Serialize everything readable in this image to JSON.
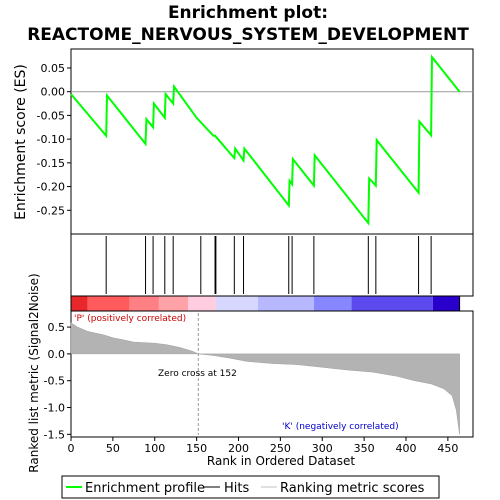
{
  "chart_data": {
    "type": "line",
    "title_line1": "Enrichment plot:",
    "title_line2": "REACTOME_NERVOUS_SYSTEM_DEVELOPMENT",
    "es_panel": {
      "ylabel": "Enrichment score (ES)",
      "ylim": [
        -0.3,
        0.09
      ],
      "yticks": [
        0.05,
        0.0,
        -0.05,
        -0.1,
        -0.15,
        -0.2,
        -0.25
      ],
      "ytick_labels": [
        "0.05",
        "0.00",
        "-0.05",
        "-0.10",
        "-0.15",
        "-0.20",
        "-0.25"
      ],
      "line_color": "#00ff00",
      "profile": [
        [
          0,
          -0.005
        ],
        [
          42,
          -0.093
        ],
        [
          43,
          -0.008
        ],
        [
          89,
          -0.11
        ],
        [
          90,
          -0.058
        ],
        [
          98,
          -0.075
        ],
        [
          99,
          -0.025
        ],
        [
          112,
          -0.055
        ],
        [
          113,
          -0.005
        ],
        [
          122,
          -0.025
        ],
        [
          123,
          0.011
        ],
        [
          150,
          -0.055
        ],
        [
          170,
          -0.093
        ],
        [
          172,
          -0.093
        ],
        [
          195,
          -0.14
        ],
        [
          196,
          -0.12
        ],
        [
          206,
          -0.145
        ],
        [
          207,
          -0.12
        ],
        [
          260,
          -0.24
        ],
        [
          261,
          -0.188
        ],
        [
          264,
          -0.195
        ],
        [
          265,
          -0.142
        ],
        [
          290,
          -0.198
        ],
        [
          291,
          -0.134
        ],
        [
          355,
          -0.277
        ],
        [
          356,
          -0.183
        ],
        [
          364,
          -0.198
        ],
        [
          365,
          -0.102
        ],
        [
          415,
          -0.213
        ],
        [
          416,
          -0.063
        ],
        [
          430,
          -0.092
        ],
        [
          431,
          0.073
        ],
        [
          464,
          0.0
        ]
      ]
    },
    "hits": [
      42,
      89,
      98,
      112,
      122,
      155,
      172,
      173,
      195,
      206,
      260,
      264,
      290,
      355,
      364,
      415,
      430
    ],
    "ranking_panel": {
      "ylabel": "Ranked list metric (Signal2Noise)",
      "xlabel": "Rank in Ordered Dataset",
      "xlim": [
        0,
        480
      ],
      "ylim": [
        -1.55,
        0.8
      ],
      "xticks": [
        0,
        50,
        100,
        150,
        200,
        250,
        300,
        350,
        400,
        450
      ],
      "xtick_labels": [
        "0",
        "50",
        "100",
        "150",
        "200",
        "250",
        "300",
        "350",
        "400",
        "450"
      ],
      "yticks": [
        0.5,
        0.0,
        -0.5,
        -1.0,
        -1.5
      ],
      "ytick_labels": [
        "0.5",
        "0.0",
        "-0.5",
        "-1.0",
        "-1.5"
      ],
      "n_genes": 464,
      "zero_cross": 152,
      "metric_curve": [
        [
          0,
          0.58
        ],
        [
          8,
          0.5
        ],
        [
          20,
          0.42
        ],
        [
          40,
          0.35
        ],
        [
          50,
          0.3
        ],
        [
          60,
          0.27
        ],
        [
          75,
          0.22
        ],
        [
          100,
          0.2
        ],
        [
          115,
          0.17
        ],
        [
          130,
          0.12
        ],
        [
          145,
          0.05
        ],
        [
          152,
          0.0
        ],
        [
          170,
          -0.03
        ],
        [
          190,
          -0.08
        ],
        [
          210,
          -0.14
        ],
        [
          240,
          -0.18
        ],
        [
          270,
          -0.2
        ],
        [
          300,
          -0.25
        ],
        [
          330,
          -0.3
        ],
        [
          360,
          -0.34
        ],
        [
          390,
          -0.42
        ],
        [
          410,
          -0.5
        ],
        [
          430,
          -0.56
        ],
        [
          445,
          -0.65
        ],
        [
          455,
          -0.78
        ],
        [
          460,
          -1.05
        ],
        [
          463,
          -1.4
        ],
        [
          464,
          -1.5
        ]
      ],
      "annotation_positive": "'P' (positively correlated)",
      "annotation_negative": "'K' (negatively correlated)",
      "annotation_zero": "Zero cross at 152",
      "positive_color": "#cc0000",
      "negative_color": "#0000cc"
    },
    "color_bar_segments": [
      {
        "end": 20,
        "color": "#e8272a"
      },
      {
        "end": 70,
        "color": "#ff5a5c"
      },
      {
        "end": 105,
        "color": "#ff8084"
      },
      {
        "end": 140,
        "color": "#ffa3a8"
      },
      {
        "end": 173,
        "color": "#ffcce0"
      },
      {
        "end": 223,
        "color": "#d8d8ff"
      },
      {
        "end": 290,
        "color": "#b8b8ff"
      },
      {
        "end": 335,
        "color": "#8787ff"
      },
      {
        "end": 432,
        "color": "#5c4aef"
      },
      {
        "end": 464,
        "color": "#2a00cc"
      }
    ],
    "legend": [
      {
        "label": "Enrichment profile",
        "color": "#00ff00"
      },
      {
        "label": "Hits",
        "color": "#000000"
      },
      {
        "label": "Ranking metric scores",
        "color": "#c0c0c0"
      }
    ]
  }
}
